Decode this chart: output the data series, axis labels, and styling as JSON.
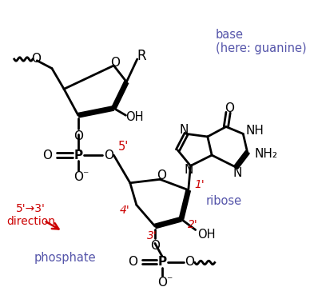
{
  "bg_color": "#ffffff",
  "black": "#000000",
  "red": "#cc0000",
  "blue": "#5555aa",
  "fig_w": 3.93,
  "fig_h": 3.79,
  "label_base": "base\n(here: guanine)",
  "label_ribose": "ribose",
  "label_phosphate": "phosphate",
  "label_direction": "5’→3’\ndirection"
}
